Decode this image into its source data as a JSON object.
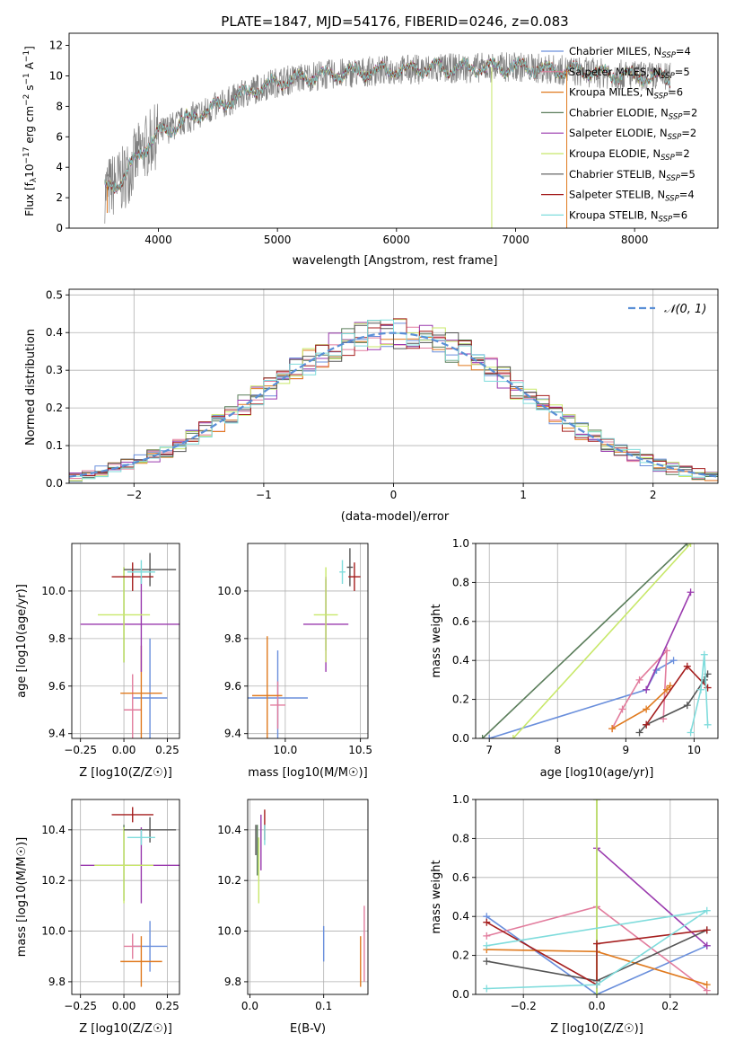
{
  "colors": {
    "chabrier_miles": "#6a8fdc",
    "salpeter_miles": "#e27c9d",
    "kroupa_miles": "#e07a1f",
    "chabrier_elodie": "#5a7d5a",
    "salpeter_elodie": "#9a3aae",
    "kroupa_elodie": "#c8e86a",
    "chabrier_stelib": "#555555",
    "salpeter_stelib": "#a51e1e",
    "kroupa_stelib": "#7fdcdc",
    "grid": "#b0b0b0",
    "data": "#808080"
  },
  "chart_data": [
    {
      "id": "spectrum",
      "type": "line",
      "title": "PLATE=1847, MJD=54176, FIBERID=0246, z=0.083",
      "xlabel": "wavelength [Angstrom, rest frame]",
      "ylabel_parts": [
        "Flux [f",
        "λ",
        "10",
        "−17",
        " erg cm",
        "−2",
        " s",
        "−1",
        " A",
        "−1",
        "]"
      ],
      "xlim": [
        3250,
        8700
      ],
      "ylim": [
        0,
        12.8
      ],
      "xticks": [
        4000,
        5000,
        6000,
        7000,
        8000
      ],
      "yticks": [
        0,
        2,
        4,
        6,
        8,
        10,
        12
      ],
      "x_range": [
        3550,
        8300
      ],
      "continuum": [
        [
          3550,
          2.5
        ],
        [
          3700,
          3.2
        ],
        [
          3850,
          5.0
        ],
        [
          4000,
          6.2
        ],
        [
          4250,
          7.2
        ],
        [
          4500,
          8.0
        ],
        [
          4800,
          9.1
        ],
        [
          5000,
          9.6
        ],
        [
          5300,
          10.0
        ],
        [
          5600,
          10.2
        ],
        [
          6000,
          10.4
        ],
        [
          6500,
          10.5
        ],
        [
          7000,
          10.6
        ],
        [
          7500,
          10.3
        ],
        [
          8000,
          10.0
        ],
        [
          8300,
          9.9
        ]
      ],
      "legend": [
        {
          "name": "Chabrier MILES",
          "nssp": "4"
        },
        {
          "name": "Salpeter MILES",
          "nssp": "5"
        },
        {
          "name": "Kroupa MILES",
          "nssp": "6"
        },
        {
          "name": "Chabrier ELODIE",
          "nssp": "2"
        },
        {
          "name": "Salpeter ELODIE",
          "nssp": "2"
        },
        {
          "name": "Kroupa ELODIE",
          "nssp": "2"
        },
        {
          "name": "Chabrier STELIB",
          "nssp": "5"
        },
        {
          "name": "Salpeter STELIB",
          "nssp": "4"
        },
        {
          "name": "Kroupa STELIB",
          "nssp": "6"
        }
      ],
      "nssp_label": "N",
      "nssp_sub": "SSP"
    },
    {
      "id": "residuals",
      "type": "histogram",
      "xlabel": "(data-model)/error",
      "ylabel": "Normed distribution",
      "xlim": [
        -2.5,
        2.5
      ],
      "ylim": [
        0,
        0.515
      ],
      "xticks": [
        -2,
        -1,
        0,
        1,
        2
      ],
      "yticks": [
        0.0,
        0.1,
        0.2,
        0.3,
        0.4,
        0.5
      ],
      "bin_width": 0.1,
      "gaussian_label": "𝒩(0, 1)"
    },
    {
      "id": "age_vs_Z",
      "type": "errorbar",
      "xlabel": "Z [log10(Z/Z☉)]",
      "ylabel": "age  [log10(age/yr)]",
      "xlim": [
        -0.3,
        0.32
      ],
      "ylim": [
        9.38,
        10.2
      ],
      "xticks": [
        -0.25,
        0.0,
        0.25
      ],
      "yticks": [
        9.4,
        9.6,
        9.8,
        10.0
      ],
      "points": [
        {
          "model": "chabrier_miles",
          "x": 0.15,
          "xerr": 0.1,
          "y": 9.55,
          "yerr": 0.25
        },
        {
          "model": "salpeter_miles",
          "x": 0.05,
          "xerr": 0.05,
          "y": 9.5,
          "yerr": 0.15
        },
        {
          "model": "kroupa_miles",
          "x": 0.1,
          "xerr": 0.12,
          "y": 9.57,
          "yerr": 0.2
        },
        {
          "model": "chabrier_elodie",
          "x": 0.0,
          "xerr": 0.0,
          "y": 9.9,
          "yerr": 0.2
        },
        {
          "model": "salpeter_elodie",
          "x": 0.1,
          "xerr": 0.35,
          "y": 9.86,
          "yerr": 0.2
        },
        {
          "model": "kroupa_elodie",
          "x": 0.0,
          "xerr": 0.15,
          "y": 9.9,
          "yerr": 0.2
        },
        {
          "model": "chabrier_stelib",
          "x": 0.15,
          "xerr": 0.15,
          "y": 10.09,
          "yerr": 0.07
        },
        {
          "model": "salpeter_stelib",
          "x": 0.05,
          "xerr": 0.12,
          "y": 10.06,
          "yerr": 0.06
        },
        {
          "model": "kroupa_stelib",
          "x": 0.1,
          "xerr": 0.08,
          "y": 10.08,
          "yerr": 0.05
        }
      ]
    },
    {
      "id": "age_vs_mass",
      "type": "errorbar",
      "xlabel": "mass [log10(M/M☉)]",
      "ylabel": "",
      "xlim": [
        9.75,
        10.55
      ],
      "ylim": [
        9.38,
        10.2
      ],
      "xticks": [
        10.0,
        10.5
      ],
      "yticks": [
        9.4,
        9.6,
        9.8,
        10.0
      ],
      "points": [
        {
          "model": "chabrier_miles",
          "x": 9.95,
          "xerr": 0.2,
          "y": 9.55,
          "yerr": 0.2
        },
        {
          "model": "salpeter_miles",
          "x": 9.95,
          "xerr": 0.05,
          "y": 9.52,
          "yerr": 0.1
        },
        {
          "model": "kroupa_miles",
          "x": 9.88,
          "xerr": 0.1,
          "y": 9.56,
          "yerr": 0.25
        },
        {
          "model": "chabrier_elodie",
          "x": 10.27,
          "xerr": 0.0,
          "y": 9.9,
          "yerr": 0.15
        },
        {
          "model": "salpeter_elodie",
          "x": 10.27,
          "xerr": 0.15,
          "y": 9.86,
          "yerr": 0.2
        },
        {
          "model": "kroupa_elodie",
          "x": 10.27,
          "xerr": 0.08,
          "y": 9.9,
          "yerr": 0.2
        },
        {
          "model": "chabrier_stelib",
          "x": 10.43,
          "xerr": 0.02,
          "y": 10.1,
          "yerr": 0.08
        },
        {
          "model": "salpeter_stelib",
          "x": 10.46,
          "xerr": 0.04,
          "y": 10.06,
          "yerr": 0.06
        },
        {
          "model": "kroupa_stelib",
          "x": 10.38,
          "xerr": 0.02,
          "y": 10.08,
          "yerr": 0.05
        }
      ]
    },
    {
      "id": "weight_vs_age",
      "type": "line",
      "xlabel": "age  [log10(age/yr)]",
      "ylabel": "mass weight",
      "xlim": [
        6.8,
        10.35
      ],
      "ylim": [
        0.0,
        1.0
      ],
      "xticks": [
        7,
        8,
        9,
        10
      ],
      "yticks": [
        0.0,
        0.2,
        0.4,
        0.6,
        0.8,
        1.0
      ],
      "series": [
        {
          "model": "chabrier_miles",
          "points": [
            [
              7.0,
              0.0
            ],
            [
              9.3,
              0.25
            ],
            [
              9.45,
              0.35
            ],
            [
              9.7,
              0.4
            ]
          ]
        },
        {
          "model": "salpeter_miles",
          "points": [
            [
              8.8,
              0.05
            ],
            [
              8.95,
              0.15
            ],
            [
              9.2,
              0.3
            ],
            [
              9.6,
              0.45
            ],
            [
              9.55,
              0.1
            ]
          ]
        },
        {
          "model": "kroupa_miles",
          "points": [
            [
              8.8,
              0.05
            ],
            [
              9.3,
              0.15
            ],
            [
              9.6,
              0.25
            ],
            [
              9.65,
              0.27
            ]
          ]
        },
        {
          "model": "chabrier_elodie",
          "points": [
            [
              6.9,
              0.0
            ],
            [
              9.9,
              1.0
            ]
          ]
        },
        {
          "model": "salpeter_elodie",
          "points": [
            [
              9.3,
              0.25
            ],
            [
              9.95,
              0.75
            ]
          ]
        },
        {
          "model": "kroupa_elodie",
          "points": [
            [
              7.35,
              0.0
            ],
            [
              9.95,
              1.0
            ]
          ]
        },
        {
          "model": "chabrier_stelib",
          "points": [
            [
              9.2,
              0.03
            ],
            [
              9.3,
              0.07
            ],
            [
              9.9,
              0.17
            ],
            [
              10.15,
              0.3
            ],
            [
              10.2,
              0.33
            ]
          ]
        },
        {
          "model": "salpeter_stelib",
          "points": [
            [
              9.3,
              0.07
            ],
            [
              9.9,
              0.37
            ],
            [
              10.2,
              0.26
            ]
          ]
        },
        {
          "model": "kroupa_stelib",
          "points": [
            [
              9.95,
              0.03
            ],
            [
              10.1,
              0.25
            ],
            [
              10.15,
              0.43
            ],
            [
              10.2,
              0.07
            ]
          ]
        }
      ]
    },
    {
      "id": "mass_vs_Z",
      "type": "errorbar",
      "xlabel": "Z [log10(Z/Z☉)]",
      "ylabel": "mass [log10(M/M☉)]",
      "xlim": [
        -0.3,
        0.32
      ],
      "ylim": [
        9.75,
        10.52
      ],
      "xticks": [
        -0.25,
        0.0,
        0.25
      ],
      "yticks": [
        9.8,
        10.0,
        10.2,
        10.4
      ],
      "points": [
        {
          "model": "chabrier_miles",
          "x": 0.15,
          "xerr": 0.1,
          "y": 9.94,
          "yerr": 0.1
        },
        {
          "model": "salpeter_miles",
          "x": 0.05,
          "xerr": 0.05,
          "y": 9.94,
          "yerr": 0.05
        },
        {
          "model": "kroupa_miles",
          "x": 0.1,
          "xerr": 0.12,
          "y": 9.88,
          "yerr": 0.1
        },
        {
          "model": "chabrier_elodie",
          "x": 0.0,
          "xerr": 0.0,
          "y": 10.27,
          "yerr": 0.15
        },
        {
          "model": "salpeter_elodie",
          "x": 0.1,
          "xerr": 0.35,
          "y": 10.26,
          "yerr": 0.15
        },
        {
          "model": "kroupa_elodie",
          "x": 0.0,
          "xerr": 0.17,
          "y": 10.26,
          "yerr": 0.15
        },
        {
          "model": "chabrier_stelib",
          "x": 0.15,
          "xerr": 0.15,
          "y": 10.4,
          "yerr": 0.05
        },
        {
          "model": "salpeter_stelib",
          "x": 0.05,
          "xerr": 0.12,
          "y": 10.46,
          "yerr": 0.03
        },
        {
          "model": "kroupa_stelib",
          "x": 0.1,
          "xerr": 0.08,
          "y": 10.37,
          "yerr": 0.03
        }
      ]
    },
    {
      "id": "mass_vs_ebv",
      "type": "errorbar",
      "xlabel": "E(B-V)",
      "ylabel": "",
      "xlim": [
        -0.003,
        0.16
      ],
      "ylim": [
        9.75,
        10.52
      ],
      "xticks": [
        0.0,
        0.1
      ],
      "yticks": [
        9.8,
        10.0,
        10.2,
        10.4
      ],
      "points": [
        {
          "model": "chabrier_miles",
          "x": 0.1,
          "xerr": 0.0,
          "y": 9.95,
          "yerr": 0.07
        },
        {
          "model": "salpeter_miles",
          "x": 0.155,
          "xerr": 0.0,
          "y": 9.95,
          "yerr": 0.15
        },
        {
          "model": "kroupa_miles",
          "x": 0.15,
          "xerr": 0.0,
          "y": 9.88,
          "yerr": 0.1
        },
        {
          "model": "chabrier_elodie",
          "x": 0.01,
          "xerr": 0.0,
          "y": 10.32,
          "yerr": 0.1
        },
        {
          "model": "salpeter_elodie",
          "x": 0.015,
          "xerr": 0.0,
          "y": 10.35,
          "yerr": 0.11
        },
        {
          "model": "kroupa_elodie",
          "x": 0.012,
          "xerr": 0.0,
          "y": 10.24,
          "yerr": 0.13
        },
        {
          "model": "chabrier_stelib",
          "x": 0.008,
          "xerr": 0.0,
          "y": 10.36,
          "yerr": 0.06
        },
        {
          "model": "salpeter_stelib",
          "x": 0.02,
          "xerr": 0.0,
          "y": 10.42,
          "yerr": 0.06
        },
        {
          "model": "kroupa_stelib",
          "x": 0.02,
          "xerr": 0.0,
          "y": 10.38,
          "yerr": 0.04
        }
      ]
    },
    {
      "id": "weight_vs_Z",
      "type": "line",
      "xlabel": "Z [log10(Z/Z☉)]",
      "ylabel": "mass weight",
      "xlim": [
        -0.33,
        0.33
      ],
      "ylim": [
        0.0,
        1.0
      ],
      "xticks": [
        -0.2,
        0.0,
        0.2
      ],
      "yticks": [
        0.0,
        0.2,
        0.4,
        0.6,
        0.8,
        1.0
      ],
      "series": [
        {
          "model": "chabrier_miles",
          "points": [
            [
              -0.3,
              0.4
            ],
            [
              0.0,
              0.0
            ],
            [
              0.3,
              0.25
            ]
          ]
        },
        {
          "model": "salpeter_miles",
          "points": [
            [
              -0.3,
              0.3
            ],
            [
              0.0,
              0.45
            ],
            [
              0.3,
              0.02
            ]
          ]
        },
        {
          "model": "kroupa_miles",
          "points": [
            [
              -0.3,
              0.23
            ],
            [
              0.0,
              0.22
            ],
            [
              0.3,
              0.05
            ]
          ]
        },
        {
          "model": "chabrier_elodie",
          "points": [
            [
              0.0,
              0.0
            ],
            [
              0.0,
              1.0
            ]
          ]
        },
        {
          "model": "salpeter_elodie",
          "points": [
            [
              0.0,
              0.75
            ],
            [
              0.3,
              0.25
            ]
          ]
        },
        {
          "model": "kroupa_elodie",
          "points": [
            [
              0.0,
              0.0
            ],
            [
              0.0,
              1.0
            ]
          ]
        },
        {
          "model": "chabrier_stelib",
          "points": [
            [
              -0.3,
              0.17
            ],
            [
              0.0,
              0.07
            ],
            [
              0.3,
              0.33
            ]
          ]
        },
        {
          "model": "salpeter_stelib",
          "points": [
            [
              -0.3,
              0.37
            ],
            [
              0.0,
              0.05
            ],
            [
              0.0,
              0.26
            ],
            [
              0.3,
              0.33
            ]
          ]
        },
        {
          "model": "kroupa_stelib",
          "points": [
            [
              -0.3,
              0.03
            ],
            [
              0.0,
              0.05
            ],
            [
              0.3,
              0.43
            ],
            [
              -0.3,
              0.25
            ]
          ]
        }
      ]
    }
  ]
}
